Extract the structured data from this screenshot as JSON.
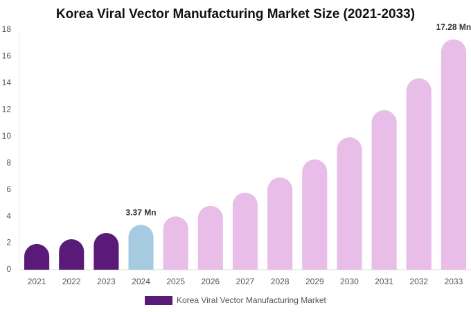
{
  "chart_data": {
    "type": "bar",
    "title": "Korea Viral Vector Manufacturing Market Size (2021-2033)",
    "categories": [
      "2021",
      "2022",
      "2023",
      "2024",
      "2025",
      "2026",
      "2027",
      "2028",
      "2029",
      "2030",
      "2031",
      "2032",
      "2033"
    ],
    "series": [
      {
        "name": "Korea Viral Vector Manufacturing Market",
        "color": "#5a1a78",
        "colors": [
          "#5a1a78",
          "#5a1a78",
          "#5a1a78",
          "#a6cbe0",
          "#e8bde8",
          "#e8bde8",
          "#e8bde8",
          "#e8bde8",
          "#e8bde8",
          "#e8bde8",
          "#e8bde8",
          "#e8bde8",
          "#e8bde8"
        ],
        "values": [
          1.93,
          2.29,
          2.76,
          3.37,
          4.0,
          4.79,
          5.78,
          6.92,
          8.27,
          9.94,
          11.97,
          14.36,
          17.28
        ],
        "value_labels": [
          null,
          null,
          null,
          "3.37 Mn",
          null,
          null,
          null,
          null,
          null,
          null,
          null,
          null,
          "17.28 Mn"
        ]
      }
    ],
    "ylim": [
      0,
      18
    ],
    "yticks": [
      0,
      2,
      4,
      6,
      8,
      10,
      12,
      14,
      16,
      18
    ],
    "grid": false,
    "legend": "bottom"
  }
}
